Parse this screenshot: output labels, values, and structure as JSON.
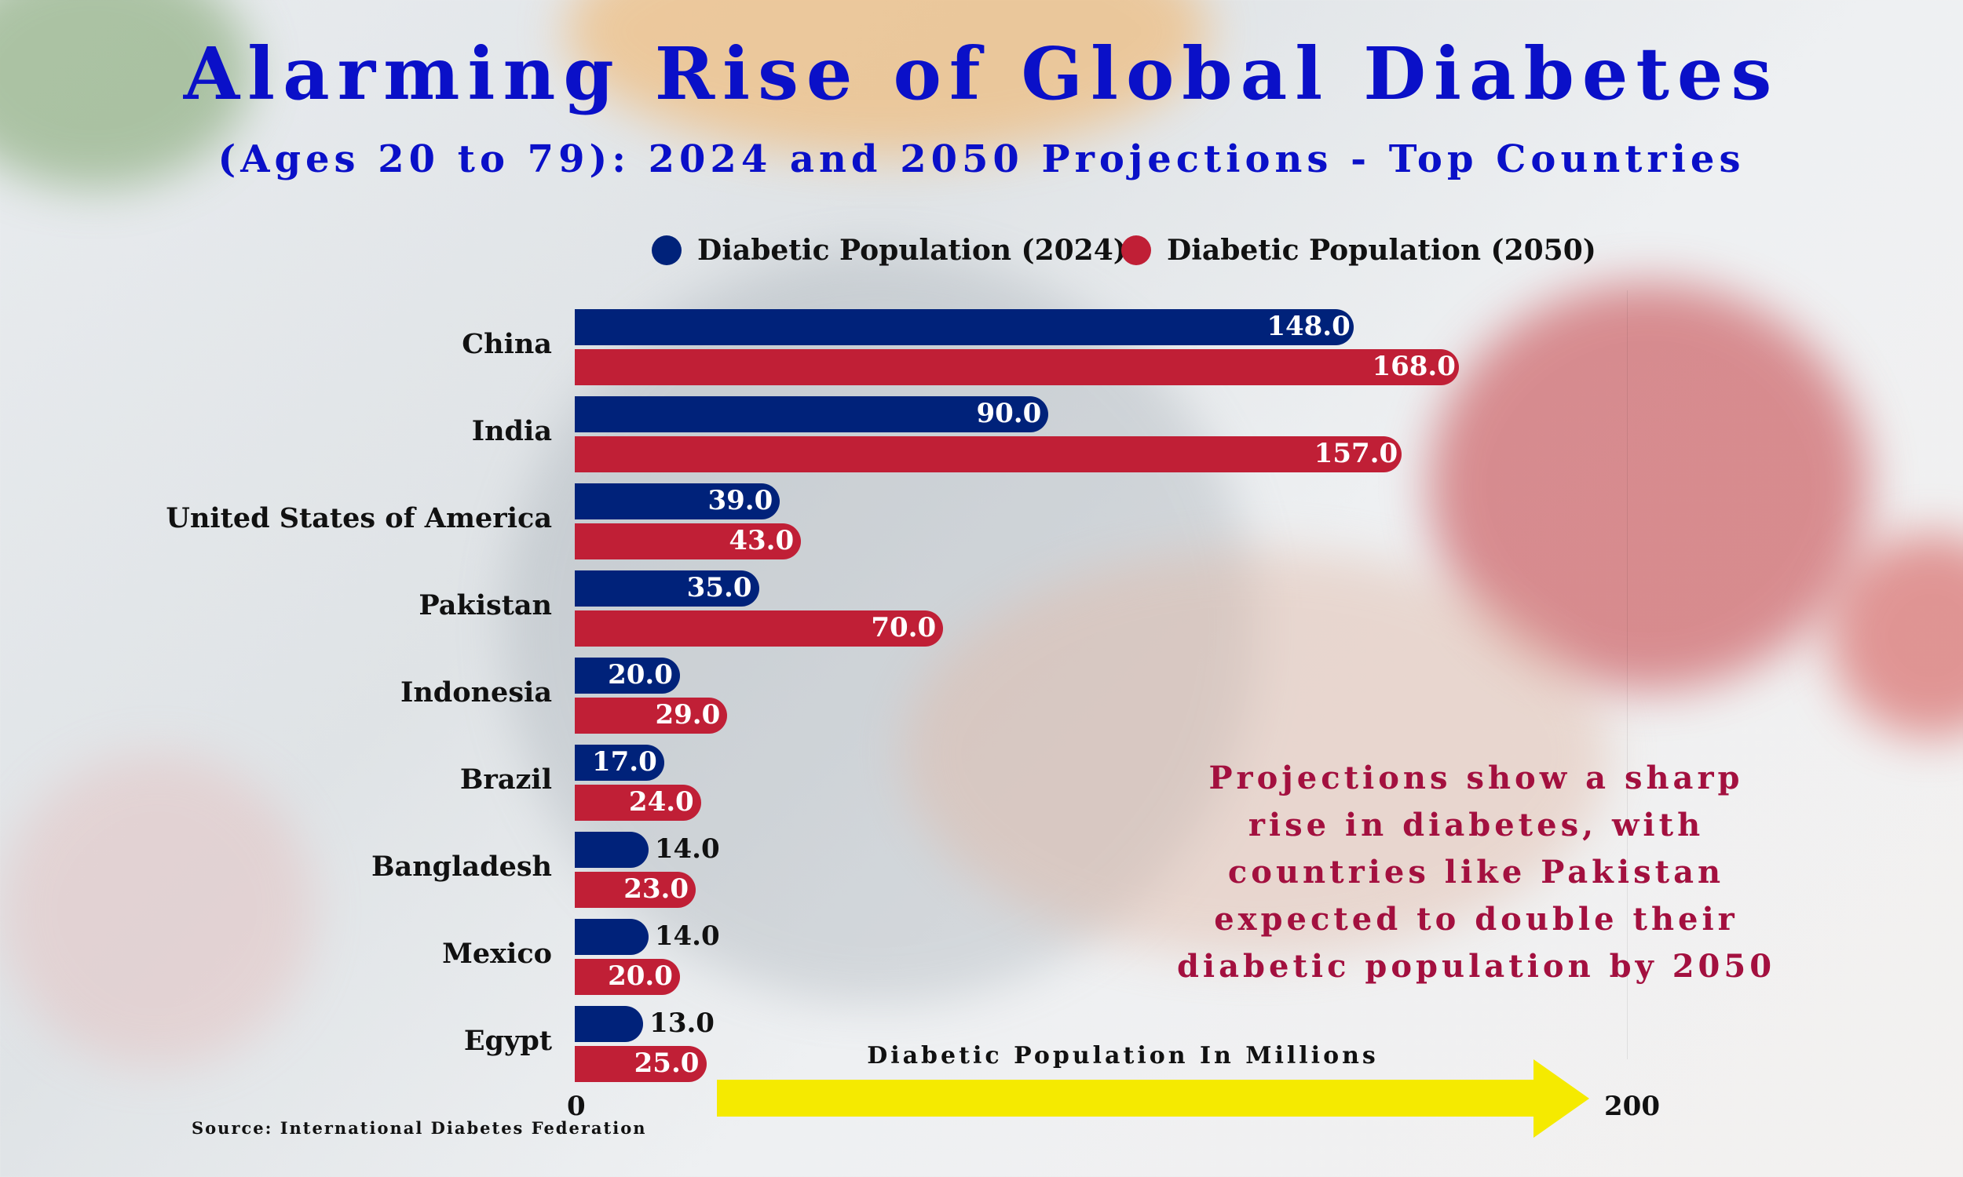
{
  "chart_data": {
    "type": "bar",
    "orientation": "horizontal",
    "title": "Alarming Rise of Global Diabetes",
    "subtitle": "(Ages 20 to 79): 2024 and 2050 Projections - Top Countries",
    "categories": [
      "China",
      "India",
      "United States of America",
      "Pakistan",
      "Indonesia",
      "Brazil",
      "Bangladesh",
      "Mexico",
      "Egypt"
    ],
    "series": [
      {
        "name": "Diabetic Population (2024)",
        "color": "#00227a",
        "values": [
          148.0,
          90.0,
          39.0,
          35.0,
          20.0,
          17.0,
          14.0,
          14.0,
          13.0
        ]
      },
      {
        "name": "Diabetic Population (2050)",
        "color": "#c01f36",
        "values": [
          168.0,
          157.0,
          43.0,
          70.0,
          29.0,
          24.0,
          23.0,
          20.0,
          25.0
        ]
      }
    ],
    "xlabel": "Diabetic Population In Millions",
    "xlim": [
      0,
      200
    ],
    "xticks": [
      "0",
      "200"
    ],
    "legend_position": "top",
    "grid": false,
    "annotation": "Projections show a sharp rise in diabetes, with countries like Pakistan expected to double their diabetic population by 2050",
    "annotation_color": "#a3103f",
    "arrow_color": "#f5ea00",
    "source": "Source: International Diabetes Federation"
  }
}
